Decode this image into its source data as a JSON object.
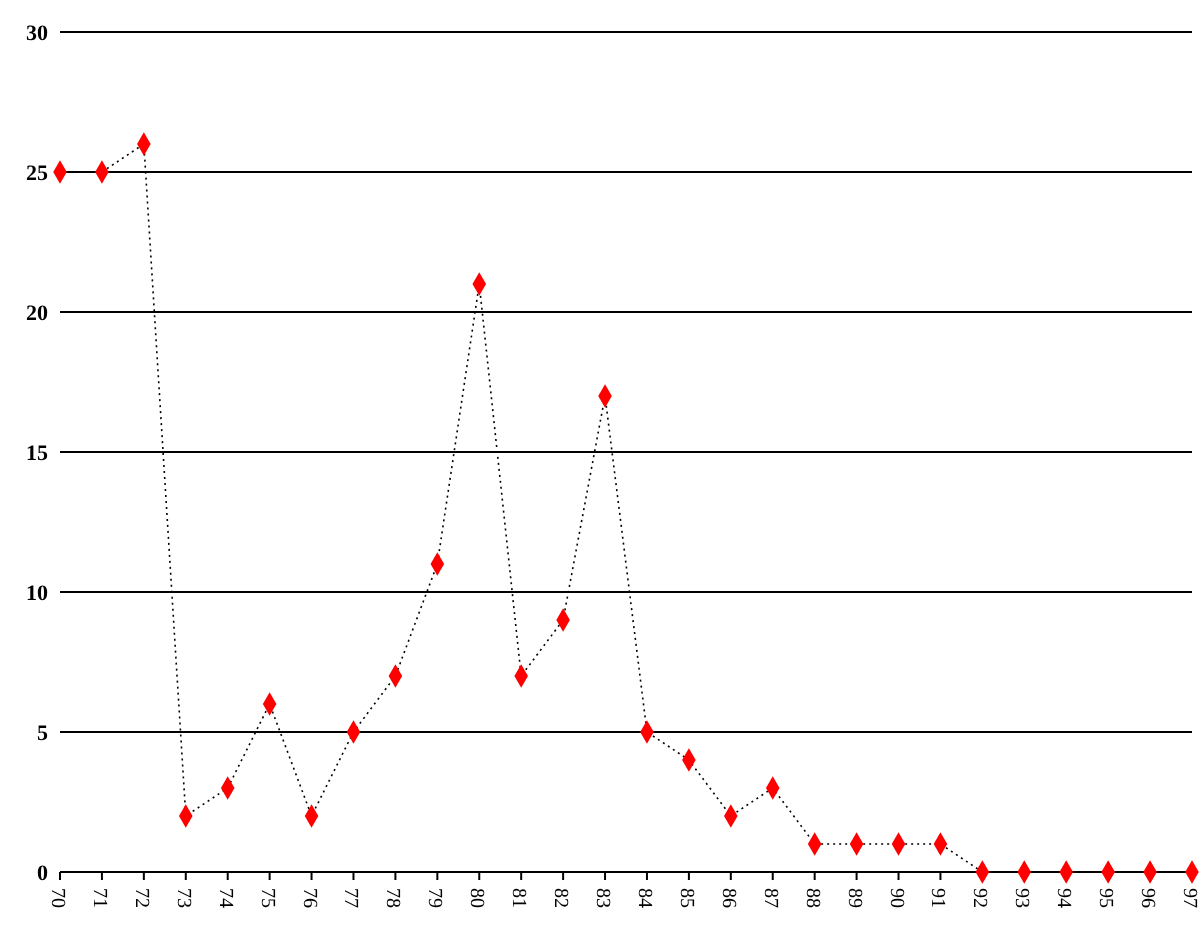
{
  "chart_data": {
    "type": "line",
    "categories": [
      "70",
      "71",
      "72",
      "73",
      "74",
      "75",
      "76",
      "77",
      "78",
      "79",
      "80",
      "81",
      "82",
      "83",
      "84",
      "85",
      "86",
      "87",
      "88",
      "89",
      "90",
      "91",
      "92",
      "93",
      "94",
      "95",
      "96",
      "97"
    ],
    "series": [
      {
        "color": "#ff0000",
        "values": [
          25,
          25,
          26,
          2,
          3,
          6,
          2,
          5,
          7,
          11,
          21,
          7,
          9,
          17,
          5,
          4,
          2,
          3,
          1,
          1,
          1,
          1,
          0,
          0,
          0,
          0,
          0,
          0
        ]
      }
    ],
    "ylim": [
      0,
      30
    ],
    "yticks": [
      0,
      5,
      10,
      15,
      20,
      25,
      30
    ],
    "grid": "y",
    "marker": "diamond",
    "line_style": "dotted"
  }
}
